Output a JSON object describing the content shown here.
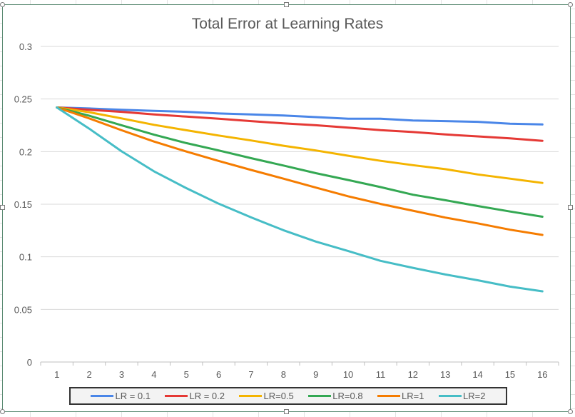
{
  "chart_data": {
    "type": "line",
    "title": "Total Error at Learning Rates",
    "xlabel": "",
    "ylabel": "",
    "categories": [
      "1",
      "2",
      "3",
      "4",
      "5",
      "6",
      "7",
      "8",
      "9",
      "10",
      "11",
      "12",
      "13",
      "14",
      "15",
      "16"
    ],
    "ylim": [
      0,
      0.3
    ],
    "yticks": [
      0,
      0.05,
      0.1,
      0.15,
      0.2,
      0.25,
      0.3
    ],
    "ytick_labels": [
      "0",
      "0.05",
      "0.1",
      "0.15",
      "0.2",
      "0.25",
      "0.3"
    ],
    "grid": true,
    "legend_position": "bottom",
    "series": [
      {
        "name": "LR = 0.1",
        "color": "#4a86e8",
        "values": [
          0.242,
          0.241,
          0.2398,
          0.2388,
          0.2378,
          0.2363,
          0.2353,
          0.2343,
          0.2328,
          0.2313,
          0.2313,
          0.2296,
          0.229,
          0.2283,
          0.2265,
          0.2258
        ]
      },
      {
        "name": "LR = 0.2",
        "color": "#e53935",
        "values": [
          0.242,
          0.2398,
          0.2378,
          0.2353,
          0.2333,
          0.2313,
          0.229,
          0.2268,
          0.2251,
          0.2228,
          0.2204,
          0.2186,
          0.2163,
          0.2145,
          0.2126,
          0.2103
        ]
      },
      {
        "name": "LR=0.5",
        "color": "#f4b400",
        "values": [
          0.242,
          0.2374,
          0.2316,
          0.2255,
          0.2203,
          0.2153,
          0.2106,
          0.2056,
          0.2011,
          0.1961,
          0.1913,
          0.1871,
          0.1833,
          0.1783,
          0.1743,
          0.1702
        ]
      },
      {
        "name": "LR=0.8",
        "color": "#34a853",
        "values": [
          0.242,
          0.2341,
          0.2251,
          0.2161,
          0.2081,
          0.2011,
          0.1938,
          0.1868,
          0.1795,
          0.173,
          0.1663,
          0.159,
          0.1538,
          0.1483,
          0.1431,
          0.1381
        ]
      },
      {
        "name": "LR=1",
        "color": "#f57c00",
        "values": [
          0.242,
          0.2316,
          0.2203,
          0.2096,
          0.2001,
          0.1911,
          0.1826,
          0.1743,
          0.1658,
          0.1575,
          0.1503,
          0.1438,
          0.1373,
          0.1318,
          0.1258,
          0.1208
        ]
      },
      {
        "name": "LR=2",
        "color": "#46bdc6",
        "values": [
          0.242,
          0.2218,
          0.2003,
          0.1813,
          0.1653,
          0.1505,
          0.1375,
          0.1253,
          0.1145,
          0.1055,
          0.0962,
          0.0895,
          0.0832,
          0.0777,
          0.0717,
          0.0672
        ]
      }
    ]
  }
}
